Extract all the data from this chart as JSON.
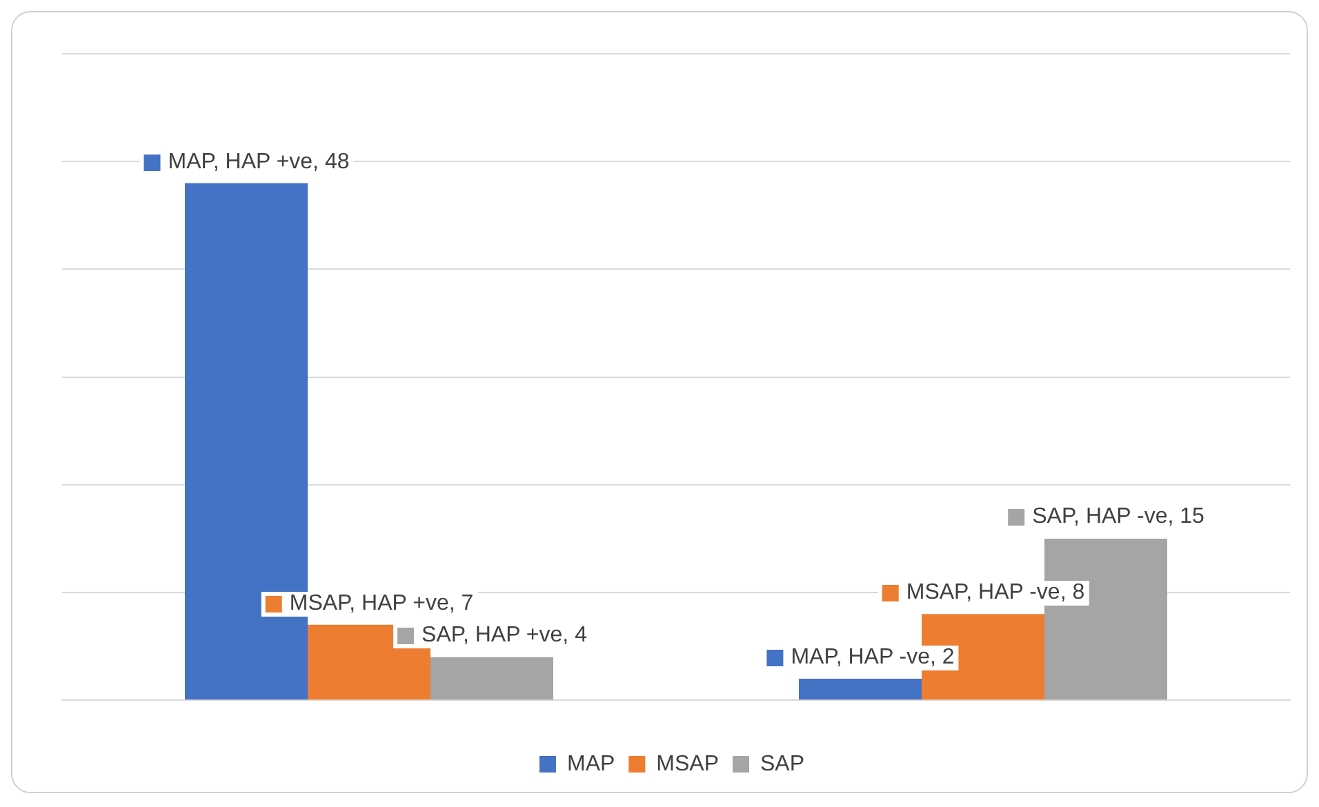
{
  "chart_data": {
    "type": "bar",
    "categories": [
      null,
      null
    ],
    "series": [
      {
        "name": "MAP",
        "color": "#4472c4",
        "values": [
          48,
          2
        ],
        "value_labels": [
          "MAP, HAP +ve, 48",
          "MAP, HAP -ve, 2"
        ]
      },
      {
        "name": "MSAP",
        "color": "#ed7d31",
        "values": [
          7,
          8
        ],
        "value_labels": [
          "MSAP, HAP +ve, 7",
          "MSAP, HAP -ve, 8"
        ]
      },
      {
        "name": "SAP",
        "color": "#a5a5a5",
        "values": [
          4,
          15
        ],
        "value_labels": [
          "SAP, HAP +ve, 4",
          "SAP, HAP -ve, 15"
        ]
      }
    ],
    "ylim": [
      0,
      60
    ],
    "yticks": [
      {
        "value": 0,
        "label": null
      },
      {
        "value": 10,
        "label": null
      },
      {
        "value": 20,
        "label": null
      },
      {
        "value": 30,
        "label": null
      },
      {
        "value": 40,
        "label": null
      },
      {
        "value": 50,
        "label": null
      },
      {
        "value": 60,
        "label": null
      }
    ],
    "grid": "y",
    "legend": "bottom"
  }
}
